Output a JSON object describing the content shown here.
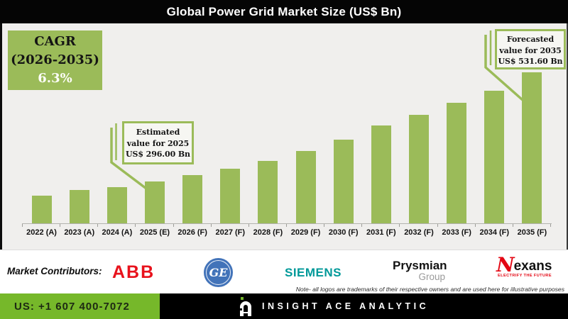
{
  "title": "Global Power Grid Market Size (US$ Bn)",
  "cagr_box": {
    "line1": "CAGR",
    "line2": "(2026-2035)",
    "line3": "6.3%"
  },
  "callouts": {
    "estimated": {
      "line1": "Estimated",
      "line2": "value for 2025",
      "line3": "US$ 296.00 Bn"
    },
    "forecasted": {
      "line1": "Forecasted",
      "line2": "value for 2035",
      "line3": "US$ 531.60 Bn"
    }
  },
  "chart_data": {
    "type": "bar",
    "title": "Global Power Grid Market Size (US$ Bn)",
    "unit": "US$ Bn",
    "categories": [
      "2022 (A)",
      "2023 (A)",
      "2024 (A)",
      "2025 (E)",
      "2026 (F)",
      "2027 (F)",
      "2028 (F)",
      "2029 (F)",
      "2030 (F)",
      "2031 (F)",
      "2032 (F)",
      "2033 (F)",
      "2034 (F)",
      "2035 (F)"
    ],
    "values": [
      265,
      277,
      284,
      296.0,
      309,
      324,
      341,
      362,
      387,
      417,
      440,
      467,
      492,
      531.6
    ],
    "labeled_values": {
      "2025 (E)": 296.0,
      "2035 (F)": 531.6
    },
    "cagr_2026_2035_pct": 6.3,
    "bar_color": "#9bbb59",
    "ylim": [
      205,
      540
    ],
    "y_axis_labels": false,
    "grid": false,
    "legend": false,
    "note": "Only 2025 and 2035 values are labeled on the chart; other values estimated from bar heights"
  },
  "colors": {
    "bar_green": "#9bbb59",
    "bottom_bar_green": "#76b82a",
    "title_bar_black": "#050505",
    "abb_red": "#e8121c",
    "ge_blue": "#4273b9",
    "siemens_teal": "#009999",
    "nexans_red": "#e30613"
  },
  "footer": {
    "market_contributors_label": "Market Contributors:",
    "logos": [
      {
        "name": "ABB",
        "text": "ABB"
      },
      {
        "name": "GE",
        "text": "GE"
      },
      {
        "name": "SIEMENS",
        "text": "SIEMENS"
      },
      {
        "name": "Prysmian Group",
        "line1": "Prysmian",
        "line2": "Group"
      },
      {
        "name": "Nexans",
        "symbol": "N",
        "text": "exans",
        "tagline": "ELECTRIFY THE FUTURE"
      }
    ],
    "note": "Note- all logos are trademarks of their respective owners and are used here for illustrative purposes",
    "phone": "US: +1 607 400-7072",
    "brand": "INSIGHT ACE ANALYTIC"
  }
}
